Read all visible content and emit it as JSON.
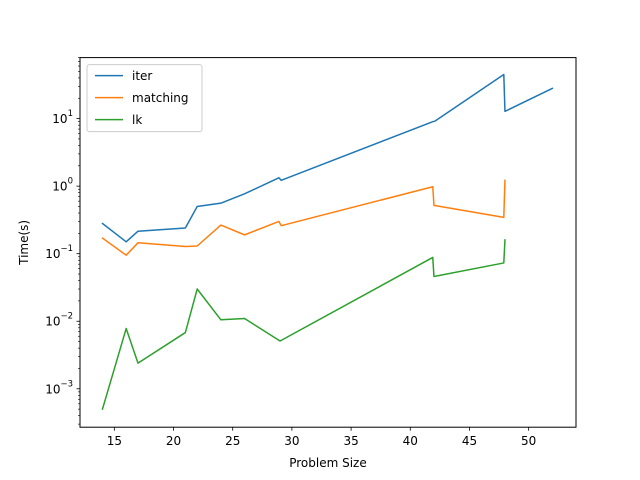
{
  "chart_data": {
    "type": "line",
    "title": "",
    "xlabel": "Problem Size",
    "ylabel": "Time(s)",
    "xlim": [
      12.1,
      54.0
    ],
    "ylim": [
      0.00027,
      80
    ],
    "yscale": "log",
    "grid": false,
    "legend_position": "upper left",
    "x_ticks": [
      15,
      20,
      25,
      30,
      35,
      40,
      45,
      50
    ],
    "x_tick_labels": [
      "15",
      "20",
      "25",
      "30",
      "35",
      "40",
      "45",
      "50"
    ],
    "y_ticks": [
      0.001,
      0.01,
      0.1,
      1,
      10
    ],
    "y_tick_labels": [
      {
        "base": "10",
        "exp": "−3"
      },
      {
        "base": "10",
        "exp": "−2"
      },
      {
        "base": "10",
        "exp": "−1"
      },
      {
        "base": "10",
        "exp": "0"
      },
      {
        "base": "10",
        "exp": "1"
      }
    ],
    "series": [
      {
        "name": "iter",
        "color": "#1f77b4",
        "points": [
          [
            14,
            0.28
          ],
          [
            16,
            0.15
          ],
          [
            17,
            0.215
          ],
          [
            21,
            0.24
          ],
          [
            22,
            0.5
          ],
          [
            24,
            0.56
          ],
          [
            26,
            0.77
          ],
          [
            28.9,
            1.33
          ],
          [
            29.1,
            1.22
          ],
          [
            41.9,
            9.0
          ],
          [
            42.1,
            9.2
          ],
          [
            47.9,
            45.0
          ],
          [
            48.0,
            12.8
          ],
          [
            52,
            28.0
          ]
        ]
      },
      {
        "name": "matching",
        "color": "#ff7f0e",
        "points": [
          [
            14,
            0.17
          ],
          [
            16,
            0.095
          ],
          [
            17,
            0.145
          ],
          [
            21,
            0.128
          ],
          [
            22,
            0.13
          ],
          [
            24,
            0.265
          ],
          [
            26,
            0.19
          ],
          [
            28.9,
            0.3
          ],
          [
            29.1,
            0.26
          ],
          [
            41.9,
            0.98
          ],
          [
            42.0,
            0.52
          ],
          [
            47.9,
            0.345
          ],
          [
            48.0,
            1.22
          ]
        ]
      },
      {
        "name": "lk",
        "color": "#2ca02c",
        "points": [
          [
            14,
            0.0005
          ],
          [
            16,
            0.0078
          ],
          [
            17,
            0.0024
          ],
          [
            21,
            0.0068
          ],
          [
            22,
            0.03
          ],
          [
            24,
            0.0105
          ],
          [
            26,
            0.011
          ],
          [
            29,
            0.0051
          ],
          [
            41.9,
            0.088
          ],
          [
            42.0,
            0.046
          ],
          [
            47.9,
            0.073
          ],
          [
            48.0,
            0.16
          ]
        ]
      }
    ]
  }
}
